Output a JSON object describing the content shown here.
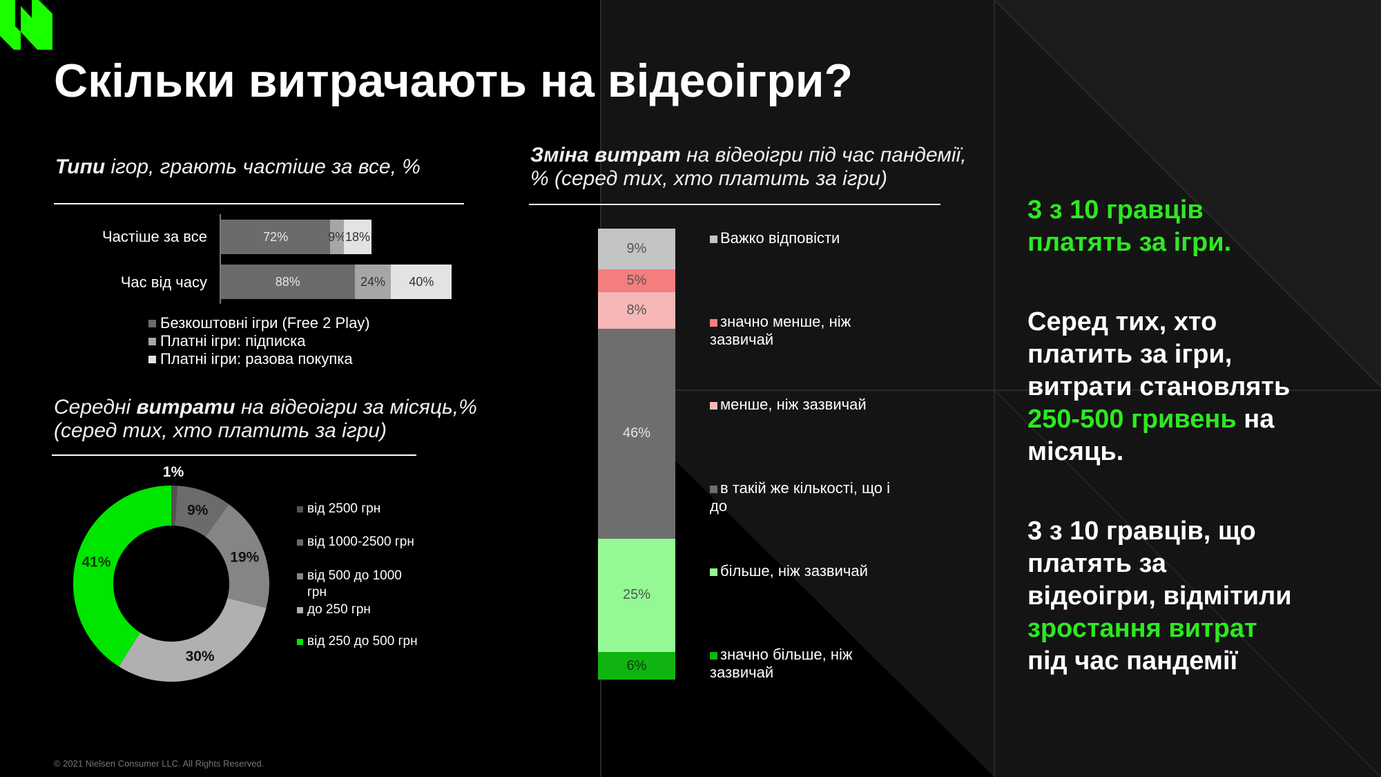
{
  "page": {
    "title": "Скільки витрачають на відеоігри?",
    "footer": "© 2021 Nielsen Consumer LLC. All Rights Reserved.",
    "colors": {
      "accent": "#2ee821",
      "background": "#000000"
    }
  },
  "types_section": {
    "subtitle_bold": "Типи",
    "subtitle_rest": " ігор, грають частіше за все, %"
  },
  "spend_section": {
    "subtitle_line1_pre": "Середні ",
    "subtitle_line1_bold": "витрати",
    "subtitle_line1_post": " на відеоігри за місяць,%",
    "subtitle_line2": "(серед тих, хто платить за ігри)"
  },
  "change_section": {
    "subtitle_line1_bold": "Зміна витрат",
    "subtitle_line1_post": " на відеоігри під час пандемії,",
    "subtitle_line2": "% (серед тих, хто платить за ігри)"
  },
  "right_panel": {
    "block1": {
      "line1": "3 з 10 гравців",
      "line2": "платять за ігри."
    },
    "block2": {
      "line1": "Серед тих, хто",
      "line2": "платить за ігри,",
      "line3": "витрати становлять",
      "line4_green": "250-500 гривень",
      "line4_rest": " на",
      "line5": "місяць."
    },
    "block3": {
      "line1": "3 з 10 гравців, що",
      "line2": "платять за",
      "line3": "відеоігри, відмітили",
      "line4_green": "зростання витрат",
      "line5": "під час пандемії"
    }
  },
  "chart_data": [
    {
      "type": "bar",
      "orientation": "horizontal",
      "stacked": true,
      "categories": [
        "Частіше за все",
        "Час від часу"
      ],
      "series": [
        {
          "name": "Безкоштовні ігри (Free 2 Play)",
          "values": [
            72,
            88
          ],
          "labels": [
            "72%",
            "88%"
          ],
          "color": "#6b6b6b"
        },
        {
          "name": "Платні ігри: підписка",
          "values": [
            9,
            24
          ],
          "labels": [
            "9%",
            "24%"
          ],
          "color": "#a6a6a6"
        },
        {
          "name": "Платні ігри: разова покупка",
          "values": [
            18,
            40
          ],
          "labels": [
            "18%",
            "40%"
          ],
          "color": "#e3e3e3"
        }
      ],
      "legend_position": "bottom"
    },
    {
      "type": "pie",
      "donut": true,
      "slices": [
        {
          "name": "від 2500 грн",
          "value": 1,
          "label": "1%",
          "color": "#525252"
        },
        {
          "name": "від 1000-2500 грн",
          "value": 9,
          "label": "9%",
          "color": "#6b6b6b"
        },
        {
          "name": "від 500 до 1000 грн",
          "value": 19,
          "label": "19%",
          "color": "#858585"
        },
        {
          "name": "до 250 грн",
          "value": 30,
          "label": "30%",
          "color": "#b0b0b0"
        },
        {
          "name": "від 250 до 500 грн",
          "value": 41,
          "label": "41%",
          "color": "#00e600"
        }
      ],
      "legend_position": "right"
    },
    {
      "type": "bar",
      "orientation": "vertical",
      "stacked": true,
      "categories": [
        ""
      ],
      "series": [
        {
          "name": "Важко відповісти",
          "value": 9,
          "label": "9%",
          "color": "#c4c4c4"
        },
        {
          "name": "значно менше, ніж зазвичай",
          "value": 5,
          "label": "5%",
          "color": "#f47e7e"
        },
        {
          "name": "менше, ніж зазвичай",
          "value": 8,
          "label": "8%",
          "color": "#f7b7b7"
        },
        {
          "name": "в такій же кількості, що і до",
          "value": 46,
          "label": "46%",
          "color": "#6e6e6e"
        },
        {
          "name": "більше, ніж зазвичай",
          "value": 25,
          "label": "25%",
          "color": "#94f994"
        },
        {
          "name": "значно більше, ніж зазвичай",
          "value": 6,
          "label": "6%",
          "color": "#10b410"
        }
      ],
      "legend_position": "right"
    }
  ]
}
